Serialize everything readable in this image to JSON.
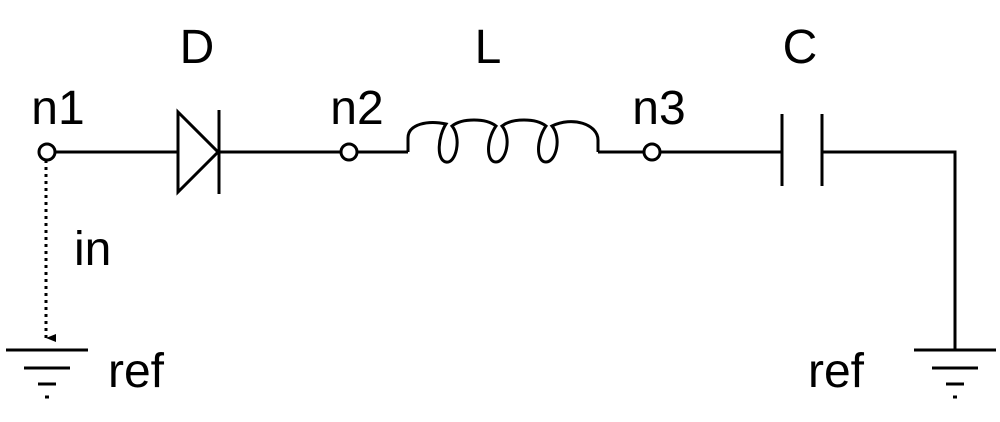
{
  "components": {
    "diode": "D",
    "inductor": "L",
    "capacitor": "C"
  },
  "nodes": {
    "n1": "n1",
    "n2": "n2",
    "n3": "n3"
  },
  "current_label": "in",
  "ground_left": "ref",
  "ground_right": "ref"
}
